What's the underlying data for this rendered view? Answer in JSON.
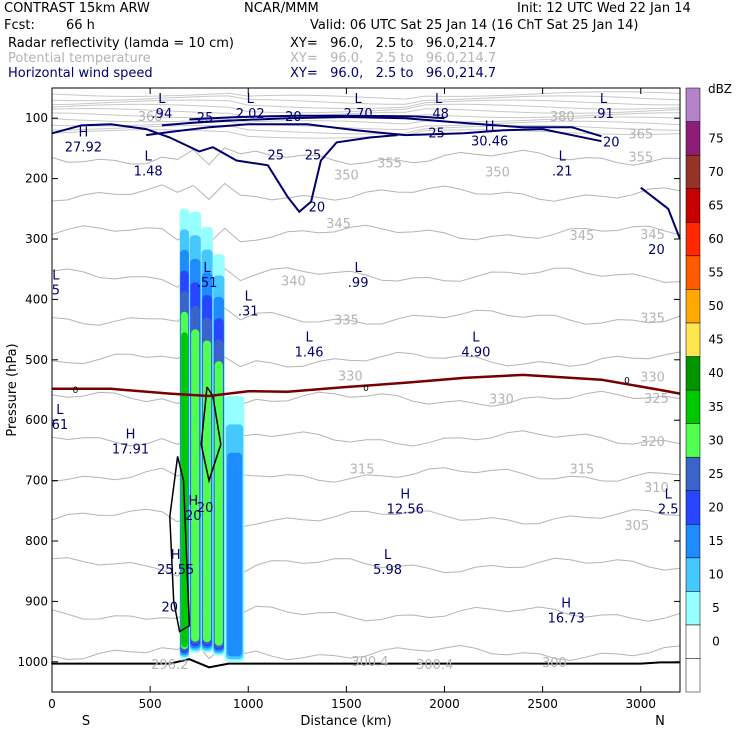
{
  "header": {
    "model": "CONTRAST 15km ARW",
    "center": "NCAR/MMM",
    "init": "Init: 12 UTC Wed 22 Jan 14",
    "fcst_label": "Fcst:",
    "fcst_value": "66 h",
    "valid": "Valid: 06 UTC Sat 25 Jan 14 (16 ChT Sat 25 Jan 14)",
    "fields": [
      {
        "name": "Radar reflectivity (lamda = 10 cm)",
        "xy": "XY=   96.0,   2.5 to   96.0,214.7",
        "color": "#000000"
      },
      {
        "name": "Potential temperature",
        "xy": "XY=   96.0,   2.5 to   96.0,214.7",
        "color": "#b4b4b4"
      },
      {
        "name": "Horizontal wind speed",
        "xy": "XY=   96.0,   2.5 to   96.0,214.7",
        "color": "#00006e"
      }
    ]
  },
  "chart_data": {
    "type": "heatmap",
    "title": "Radar reflectivity cross section with potential temperature and wind speed",
    "xlabel": "Distance (km)",
    "ylabel": "Pressure (hPa)",
    "xlim": [
      0,
      3200
    ],
    "ylim": [
      1050,
      50
    ],
    "x_ticks": [
      0,
      500,
      1000,
      1500,
      2000,
      2500,
      3000
    ],
    "x_tick_labels": [
      "0",
      "500",
      "1000",
      "1500",
      "2000",
      "2500",
      "3000"
    ],
    "y_ticks": [
      100,
      200,
      300,
      400,
      500,
      600,
      700,
      800,
      900,
      1000
    ],
    "y_tick_labels": [
      "100",
      "200",
      "300",
      "400",
      "500",
      "600",
      "700",
      "800",
      "900",
      "1000"
    ],
    "x_end_labels": [
      "S",
      "N"
    ],
    "colorbar": {
      "unit": "dBZ",
      "levels": [
        -5,
        0,
        5,
        10,
        15,
        20,
        25,
        30,
        35,
        40,
        45,
        50,
        55,
        60,
        65,
        70,
        75,
        80
      ],
      "labels": [
        "0",
        "5",
        "10",
        "15",
        "20",
        "25",
        "30",
        "35",
        "40",
        "45",
        "50",
        "55",
        "60",
        "65",
        "70",
        "75"
      ],
      "colors": [
        "#ffffff",
        "#ffffff",
        "#96ffff",
        "#46c8ff",
        "#1e8cff",
        "#2846ff",
        "#3c64c8",
        "#50ff50",
        "#00c800",
        "#009600",
        "#ffe650",
        "#ffaa00",
        "#ff5a00",
        "#ff2800",
        "#c80000",
        "#963228",
        "#8c1e78",
        "#b482c8"
      ]
    },
    "reflectivity_columns": [
      {
        "x": [
          650,
          700
        ],
        "top_hPa": 250,
        "bottom_hPa": 995,
        "peak_dBZ": 35
      },
      {
        "x": [
          700,
          760
        ],
        "top_hPa": 255,
        "bottom_hPa": 985,
        "peak_dBZ": 30
      },
      {
        "x": [
          760,
          820
        ],
        "top_hPa": 280,
        "bottom_hPa": 985,
        "peak_dBZ": 30
      },
      {
        "x": [
          820,
          880
        ],
        "top_hPa": 325,
        "bottom_hPa": 990,
        "peak_dBZ": 30
      },
      {
        "x": [
          880,
          980
        ],
        "top_hPa": 560,
        "bottom_hPa": 1000,
        "peak_dBZ": 15
      }
    ],
    "zero_contour": {
      "label": "0",
      "points": [
        [
          0,
          548
        ],
        [
          300,
          548
        ],
        [
          600,
          556
        ],
        [
          800,
          560
        ],
        [
          1000,
          552
        ],
        [
          1200,
          553
        ],
        [
          1500,
          545
        ],
        [
          1800,
          538
        ],
        [
          2100,
          530
        ],
        [
          2400,
          525
        ],
        [
          2800,
          533
        ],
        [
          3100,
          550
        ],
        [
          3200,
          556
        ]
      ]
    },
    "theta_labels": [
      {
        "value": "380",
        "x": 2600,
        "p": 98
      },
      {
        "value": "365",
        "x": 3000,
        "p": 127
      },
      {
        "value": "360",
        "x": 500,
        "p": 98
      },
      {
        "value": "355",
        "x": 3000,
        "p": 165
      },
      {
        "value": "355",
        "x": 1720,
        "p": 175
      },
      {
        "value": "350",
        "x": 2270,
        "p": 190
      },
      {
        "value": "350",
        "x": 1500,
        "p": 195
      },
      {
        "value": "345",
        "x": 1460,
        "p": 275
      },
      {
        "value": "345",
        "x": 2700,
        "p": 295
      },
      {
        "value": "345",
        "x": 3060,
        "p": 293
      },
      {
        "value": "340",
        "x": 1230,
        "p": 370
      },
      {
        "value": "335",
        "x": 1500,
        "p": 435
      },
      {
        "value": "335",
        "x": 3060,
        "p": 432
      },
      {
        "value": "330",
        "x": 1520,
        "p": 528
      },
      {
        "value": "330",
        "x": 2290,
        "p": 566
      },
      {
        "value": "330",
        "x": 3060,
        "p": 529
      },
      {
        "value": "325",
        "x": 3080,
        "p": 565
      },
      {
        "value": "320",
        "x": 3060,
        "p": 636
      },
      {
        "value": "315",
        "x": 1580,
        "p": 682
      },
      {
        "value": "315",
        "x": 2700,
        "p": 682
      },
      {
        "value": "310",
        "x": 3080,
        "p": 712
      },
      {
        "value": "305",
        "x": 2980,
        "p": 775
      },
      {
        "value": "300",
        "x": 2560,
        "p": 1002
      },
      {
        "value": "300.4",
        "x": 1620,
        "p": 1000
      },
      {
        "value": "300.4",
        "x": 1950,
        "p": 1005
      },
      {
        "value": "296.2",
        "x": 600,
        "p": 1005
      }
    ],
    "wind_labels": [
      {
        "value": "25",
        "x": 780,
        "p": 100
      },
      {
        "value": "20",
        "x": 1230,
        "p": 98
      },
      {
        "value": "25",
        "x": 1140,
        "p": 162
      },
      {
        "value": "25",
        "x": 1330,
        "p": 162
      },
      {
        "value": "20",
        "x": 1350,
        "p": 248
      },
      {
        "value": "25",
        "x": 1960,
        "p": 125
      },
      {
        "value": "20",
        "x": 2850,
        "p": 140
      },
      {
        "value": "20",
        "x": 3080,
        "p": 318
      },
      {
        "value": "20",
        "x": 780,
        "p": 745
      },
      {
        "value": "20",
        "x": 600,
        "p": 910
      }
    ],
    "extrema": [
      {
        "mark": "L",
        "value": ".94",
        "x": 560,
        "p": 80
      },
      {
        "mark": "L",
        "value": "2.02",
        "x": 1010,
        "p": 80
      },
      {
        "mark": "L",
        "value": "2.70",
        "x": 1560,
        "p": 80
      },
      {
        "mark": "L",
        "value": ".48",
        "x": 1970,
        "p": 80
      },
      {
        "mark": "L",
        "value": ".91",
        "x": 2810,
        "p": 80
      },
      {
        "mark": "H",
        "value": "27.92",
        "x": 160,
        "p": 135
      },
      {
        "mark": "H",
        "value": "30.46",
        "x": 2230,
        "p": 125
      },
      {
        "mark": "L",
        "value": "1.48",
        "x": 490,
        "p": 175
      },
      {
        "mark": "L",
        "value": ".21",
        "x": 2600,
        "p": 175
      },
      {
        "mark": "L",
        "value": ".99",
        "x": 1560,
        "p": 360
      },
      {
        "mark": "L",
        "value": ".51",
        "x": 790,
        "p": 360
      },
      {
        "mark": "L",
        "value": ".31",
        "x": 1000,
        "p": 407
      },
      {
        "mark": "L",
        "value": "1.46",
        "x": 1310,
        "p": 475
      },
      {
        "mark": "L",
        "value": "4.90",
        "x": 2160,
        "p": 475
      },
      {
        "mark": "L",
        "value": "5",
        "x": 20,
        "p": 372
      },
      {
        "mark": "L",
        "value": "61",
        "x": 40,
        "p": 595
      },
      {
        "mark": "H",
        "value": "17.91",
        "x": 400,
        "p": 635
      },
      {
        "mark": "H",
        "value": "12.56",
        "x": 1800,
        "p": 735
      },
      {
        "mark": "L",
        "value": "2.5",
        "x": 3140,
        "p": 735
      },
      {
        "mark": "H",
        "value": "20",
        "x": 720,
        "p": 745
      },
      {
        "mark": "H",
        "value": "25.55",
        "x": 630,
        "p": 835
      },
      {
        "mark": "L",
        "value": "5.98",
        "x": 1710,
        "p": 835
      },
      {
        "mark": "H",
        "value": "16.73",
        "x": 2620,
        "p": 915
      }
    ]
  }
}
